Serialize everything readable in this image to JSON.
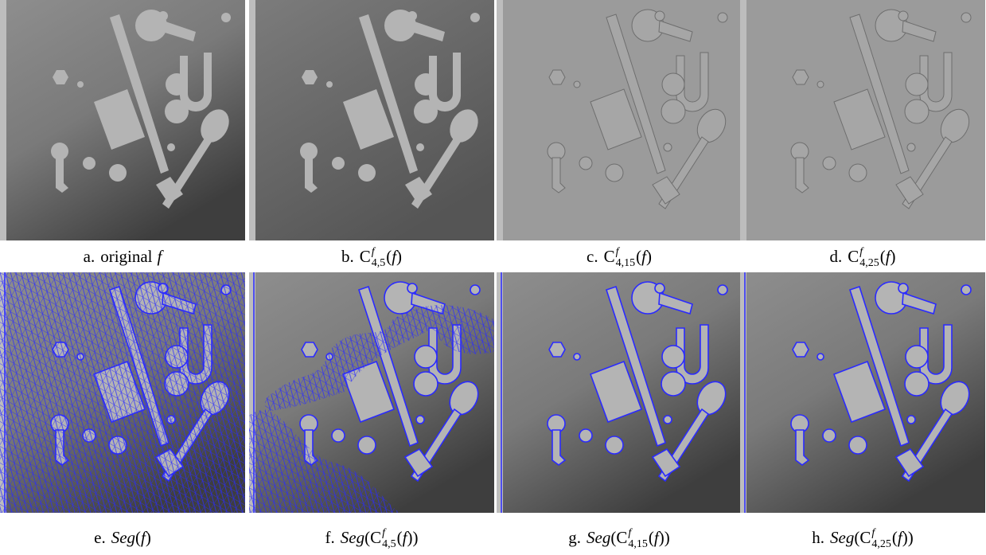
{
  "panels": [
    {
      "caption": [
        {
          "text": "a.",
          "style": "roman"
        },
        {
          "text": "original",
          "style": "word"
        },
        {
          "text": "f",
          "style": "italic"
        }
      ]
    },
    {
      "caption": [
        {
          "text": "b.",
          "style": "roman"
        },
        {
          "text": "C",
          "style": "roman"
        },
        {
          "sup": "f",
          "sub": "4,5",
          "style": "supsub"
        },
        {
          "text": "(",
          "style": "roman"
        },
        {
          "text": "f",
          "style": "italic"
        },
        {
          "text": ")",
          "style": "roman"
        }
      ]
    },
    {
      "caption": [
        {
          "text": "c.",
          "style": "roman"
        },
        {
          "text": "C",
          "style": "roman"
        },
        {
          "sup": "f",
          "sub": "4,15",
          "style": "supsub"
        },
        {
          "text": "(",
          "style": "roman"
        },
        {
          "text": "f",
          "style": "italic"
        },
        {
          "text": ")",
          "style": "roman"
        }
      ]
    },
    {
      "caption": [
        {
          "text": "d.",
          "style": "roman"
        },
        {
          "text": "C",
          "style": "roman"
        },
        {
          "sup": "f",
          "sub": "4,25",
          "style": "supsub"
        },
        {
          "text": "(",
          "style": "roman"
        },
        {
          "text": "f",
          "style": "italic"
        },
        {
          "text": ")",
          "style": "roman"
        }
      ]
    },
    {
      "caption": [
        {
          "text": "e.",
          "style": "roman"
        },
        {
          "text": "Seg",
          "style": "italic"
        },
        {
          "text": "(",
          "style": "roman"
        },
        {
          "text": "f",
          "style": "italic"
        },
        {
          "text": ")",
          "style": "roman"
        }
      ]
    },
    {
      "caption": [
        {
          "text": "f.",
          "style": "roman"
        },
        {
          "text": "Seg",
          "style": "italic"
        },
        {
          "text": "(C",
          "style": "roman"
        },
        {
          "sup": "f",
          "sub": "4,5",
          "style": "supsub"
        },
        {
          "text": "(",
          "style": "roman"
        },
        {
          "text": "f",
          "style": "italic"
        },
        {
          "text": "))",
          "style": "roman"
        }
      ]
    },
    {
      "caption": [
        {
          "text": "g.",
          "style": "roman"
        },
        {
          "text": "Seg",
          "style": "italic"
        },
        {
          "text": "(C",
          "style": "roman"
        },
        {
          "sup": "f",
          "sub": "4,15",
          "style": "supsub"
        },
        {
          "text": "(",
          "style": "roman"
        },
        {
          "text": "f",
          "style": "italic"
        },
        {
          "text": "))",
          "style": "roman"
        }
      ]
    },
    {
      "caption": [
        {
          "text": "h.",
          "style": "roman"
        },
        {
          "text": "Seg",
          "style": "italic"
        },
        {
          "text": "(C",
          "style": "roman"
        },
        {
          "sup": "f",
          "sub": "4,25",
          "style": "supsub"
        },
        {
          "text": "(",
          "style": "roman"
        },
        {
          "text": "f",
          "style": "italic"
        },
        {
          "text": "))",
          "style": "roman"
        }
      ]
    }
  ]
}
